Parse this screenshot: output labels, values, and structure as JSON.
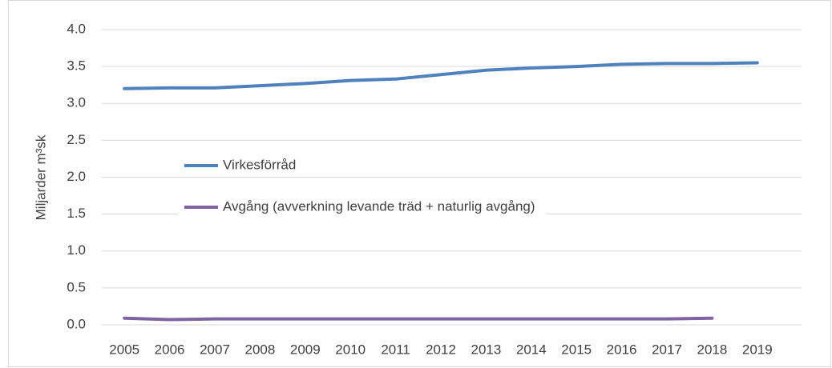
{
  "chart_data": {
    "type": "line",
    "y_label": "Miljarder m³sk",
    "categories": [
      "2005",
      "2006",
      "2007",
      "2008",
      "2009",
      "2010",
      "2011",
      "2012",
      "2013",
      "2014",
      "2015",
      "2016",
      "2017",
      "2018",
      "2019"
    ],
    "series": [
      {
        "name": "Virkesförråd",
        "color": "#4f81bd",
        "values": [
          3.2,
          3.21,
          3.21,
          3.24,
          3.27,
          3.31,
          3.33,
          3.39,
          3.45,
          3.48,
          3.5,
          3.53,
          3.54,
          3.54,
          3.55
        ]
      },
      {
        "name": "Avgång (avverkning levande träd + naturlig avgång)",
        "color": "#8064a2",
        "values": [
          0.09,
          0.07,
          0.08,
          0.08,
          0.08,
          0.08,
          0.08,
          0.08,
          0.08,
          0.08,
          0.08,
          0.08,
          0.08,
          0.09,
          null
        ]
      }
    ],
    "ylim": [
      0,
      4
    ],
    "yticks": [
      {
        "value": 0,
        "label": "0.0"
      },
      {
        "value": 0.5,
        "label": "0.5"
      },
      {
        "value": 1,
        "label": "1.0"
      },
      {
        "value": 1.5,
        "label": "1.5"
      },
      {
        "value": 2,
        "label": "2.0"
      },
      {
        "value": 2.5,
        "label": "2.5"
      },
      {
        "value": 3,
        "label": "3.0"
      },
      {
        "value": 3.5,
        "label": "3.5"
      },
      {
        "value": 4,
        "label": "4.0"
      }
    ],
    "grid": true
  }
}
